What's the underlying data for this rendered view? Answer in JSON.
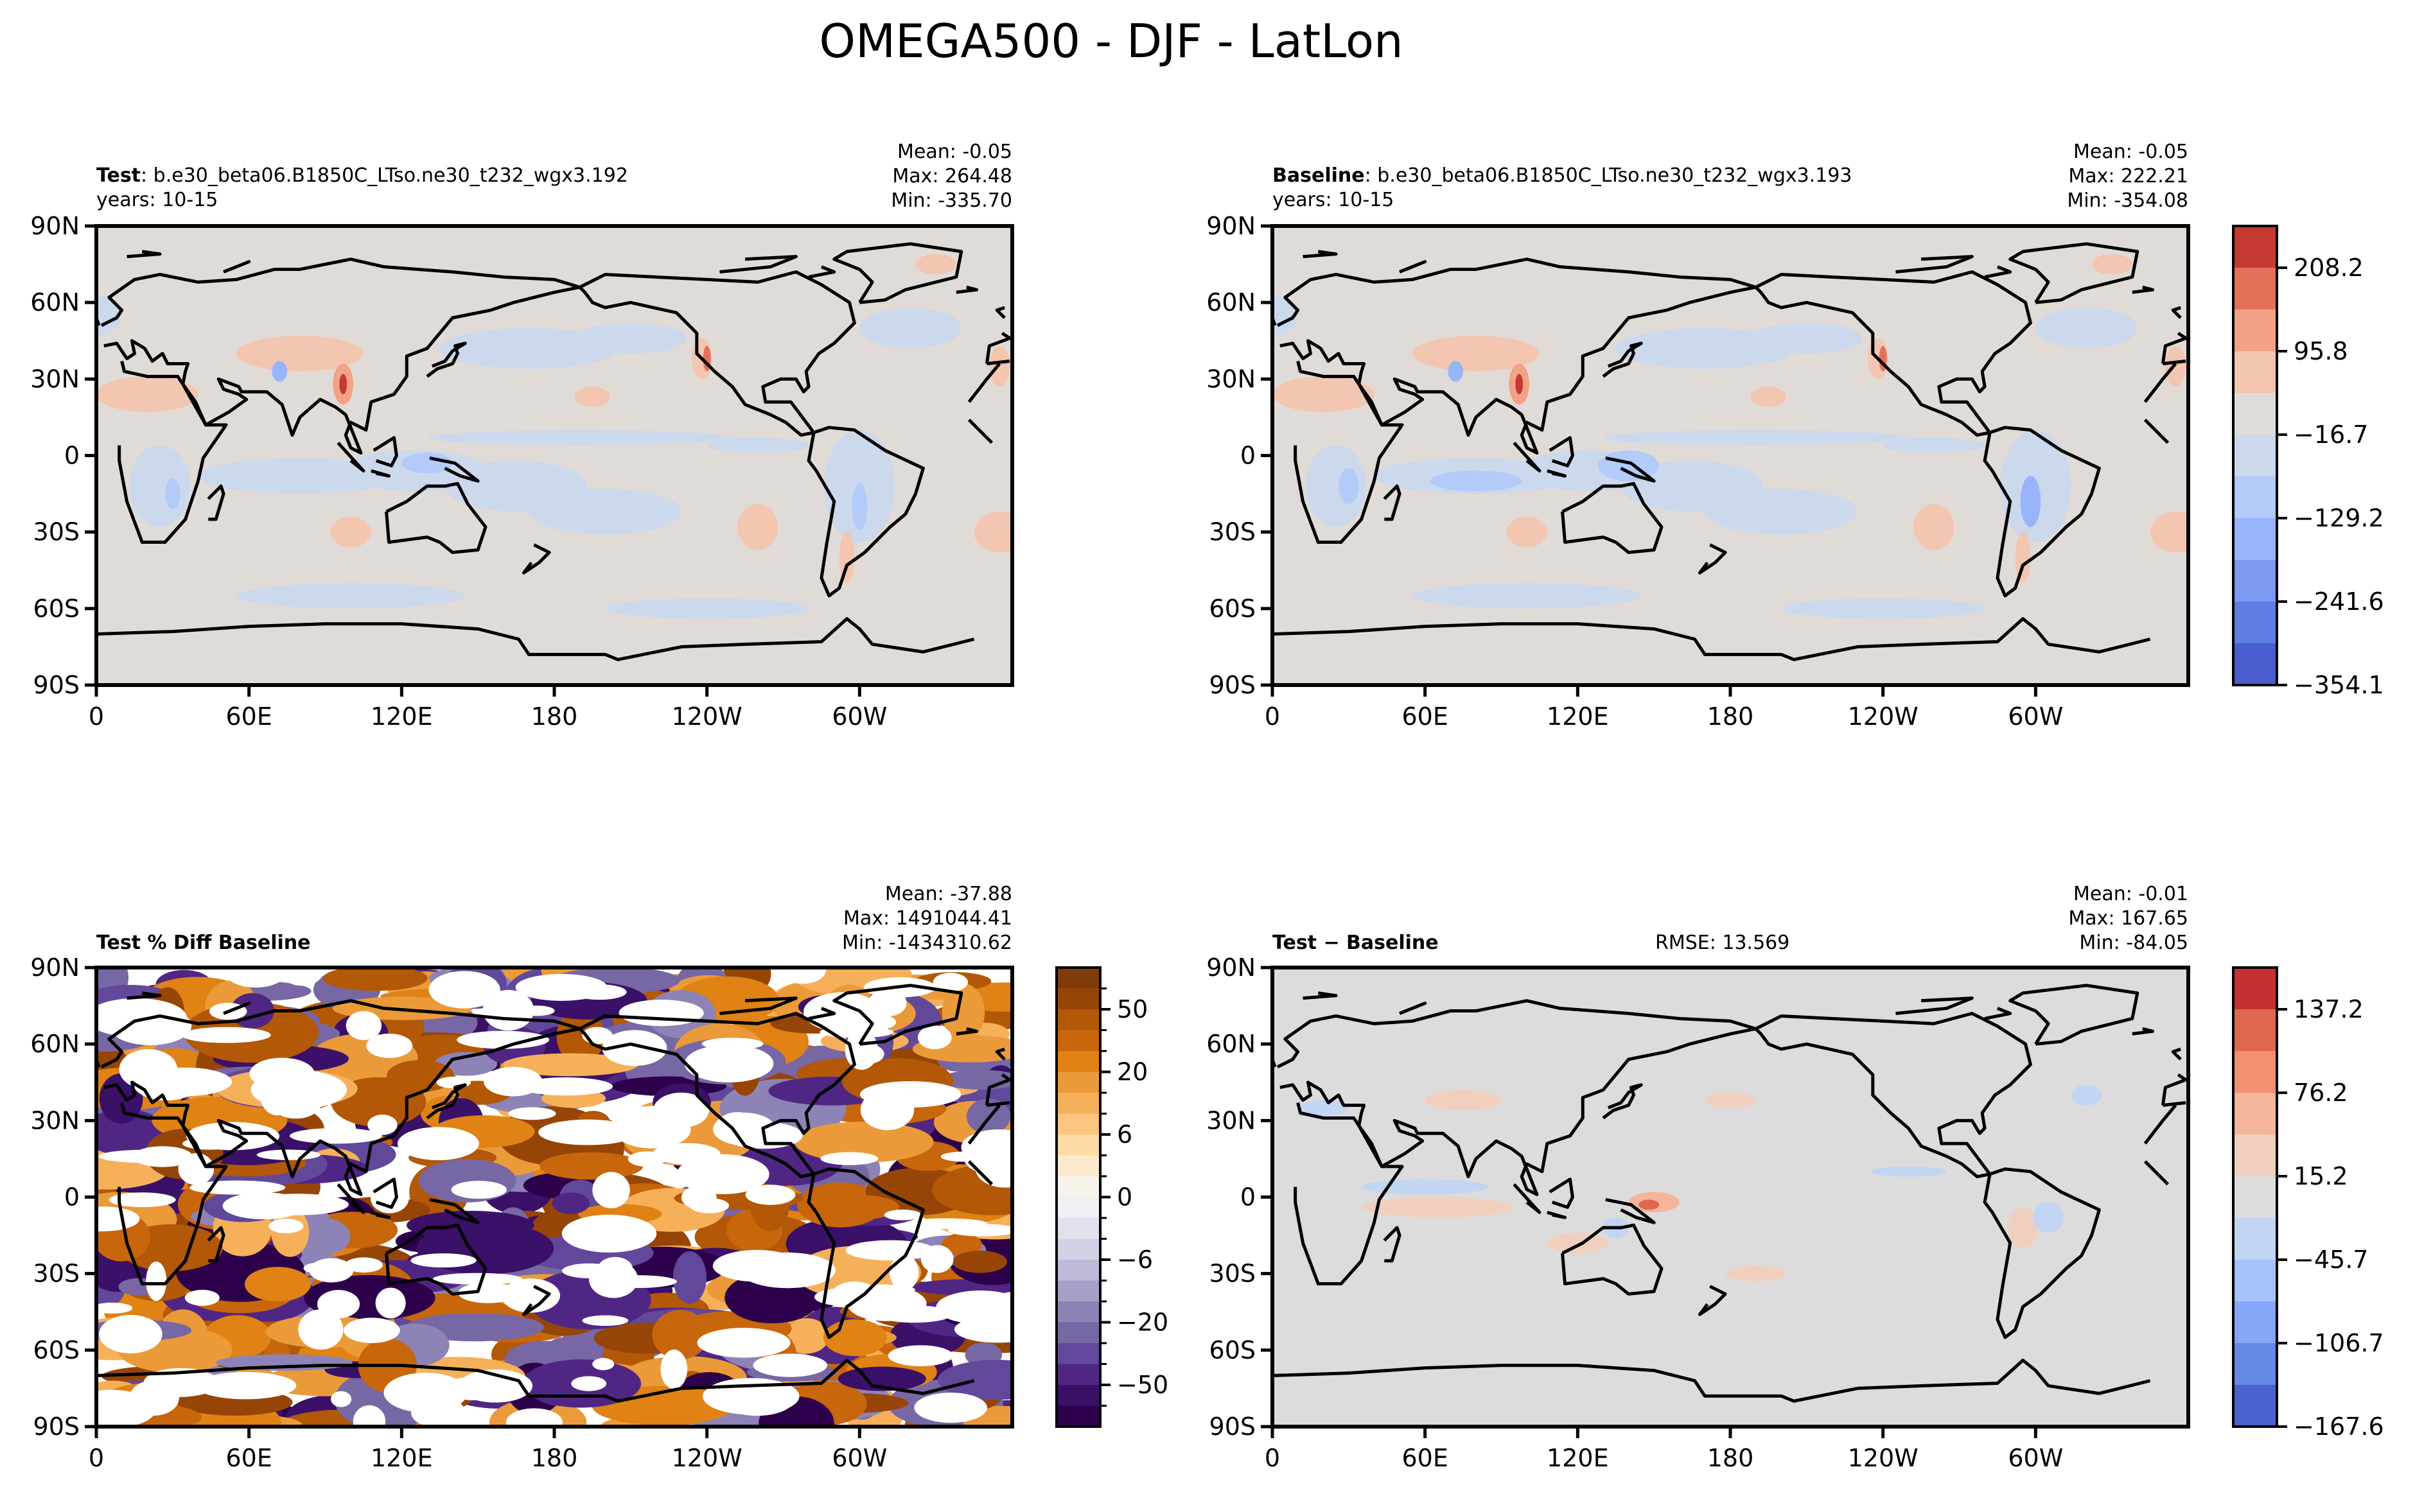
{
  "figure": {
    "title": "OMEGA500 - DJF - LatLon"
  },
  "chart_data": [
    {
      "type": "heatmap",
      "panel": "test",
      "title_bold": "Test",
      "title_rest": ": b.e30_beta06.B1850C_LTso.ne30_t232_wgx3.192",
      "subtitle": "years: 10-15",
      "stats": [
        "Mean: -0.05",
        "Max: 264.48",
        "Min: -335.70"
      ],
      "projection": "PlateCarree (central longitude 180)",
      "xticks": [
        "0",
        "60E",
        "120E",
        "180",
        "120W",
        "60W"
      ],
      "yticks": [
        "90N",
        "60N",
        "30N",
        "0",
        "30S",
        "60S",
        "90S"
      ],
      "xlim": [
        0,
        360
      ],
      "ylim": [
        -90,
        90
      ],
      "colormap": "coolwarm",
      "background_color": "#e1dbd7"
    },
    {
      "type": "heatmap",
      "panel": "baseline",
      "title_bold": "Baseline",
      "title_rest": ": b.e30_beta06.B1850C_LTso.ne30_t232_wgx3.193",
      "subtitle": "years: 10-15",
      "stats": [
        "Mean: -0.05",
        "Max: 222.21",
        "Min: -354.08"
      ],
      "projection": "PlateCarree (central longitude 180)",
      "xticks": [
        "0",
        "60E",
        "120E",
        "180",
        "120W",
        "60W"
      ],
      "yticks": [
        "90N",
        "60N",
        "30N",
        "0",
        "30S",
        "60S",
        "90S"
      ],
      "xlim": [
        0,
        360
      ],
      "ylim": [
        -90,
        90
      ],
      "colormap": "coolwarm",
      "background_color": "#e1dbd7",
      "colorbar": {
        "ticks": [
          "208.2",
          "95.8",
          "−16.7",
          "−129.2",
          "−241.6",
          "−354.1"
        ],
        "levels_top_to_bottom": [
          "#c43a33",
          "#e4705a",
          "#f3a285",
          "#f2c6b0",
          "#e1dbd7",
          "#ccd8ec",
          "#b2cbf8",
          "#98b5fb",
          "#7b9af0",
          "#5f7ee4",
          "#4a5dcf"
        ]
      }
    },
    {
      "type": "heatmap",
      "panel": "percent_diff",
      "title_bold": "Test % Diff Baseline",
      "stats": [
        "Mean: -37.88",
        "Max: 1491044.41",
        "Min: -1434310.62"
      ],
      "projection": "PlateCarree (central longitude 180)",
      "xticks": [
        "0",
        "60E",
        "120E",
        "180",
        "120W",
        "60W"
      ],
      "yticks": [
        "90N",
        "60N",
        "30N",
        "0",
        "30S",
        "60S",
        "90S"
      ],
      "xlim": [
        0,
        360
      ],
      "ylim": [
        -90,
        90
      ],
      "colormap": "PuOr_r",
      "colorbar": {
        "ticks": [
          "50",
          "20",
          "6",
          "0",
          "−6",
          "−20",
          "−50"
        ],
        "levels_top_to_bottom": [
          "#7f3b08",
          "#974507",
          "#b35806",
          "#c8660b",
          "#e08214",
          "#eb9a3a",
          "#f6b05a",
          "#fdc57f",
          "#fedaa5",
          "#fde9cd",
          "#f7f2ea",
          "#eff0f3",
          "#e2e1ee",
          "#d2d2e7",
          "#bebbda",
          "#a7a0c9",
          "#8d83b6",
          "#7767a4",
          "#62489a",
          "#502685",
          "#3b1068",
          "#2d004b"
        ]
      }
    },
    {
      "type": "heatmap",
      "panel": "difference",
      "title_bold": "Test − Baseline",
      "rmse": "RMSE: 13.569",
      "stats": [
        "Mean: -0.01",
        "Max: 167.65",
        "Min: -84.05"
      ],
      "projection": "PlateCarree (central longitude 180)",
      "xticks": [
        "0",
        "60E",
        "120E",
        "180",
        "120W",
        "60W"
      ],
      "yticks": [
        "90N",
        "60N",
        "30N",
        "0",
        "30S",
        "60S",
        "90S"
      ],
      "xlim": [
        0,
        360
      ],
      "ylim": [
        -90,
        90
      ],
      "colormap": "coolwarm",
      "background_color": "#dcdcdc",
      "colorbar": {
        "ticks": [
          "137.2",
          "76.2",
          "15.2",
          "−45.7",
          "−106.7",
          "−167.6"
        ],
        "levels_top_to_bottom": [
          "#c53032",
          "#e0674f",
          "#f19172",
          "#f4b59b",
          "#f1cfbf",
          "#dcdcdc",
          "#c2d5f3",
          "#a6c2fc",
          "#86a6f8",
          "#6689e8",
          "#4a62d0"
        ]
      }
    }
  ]
}
